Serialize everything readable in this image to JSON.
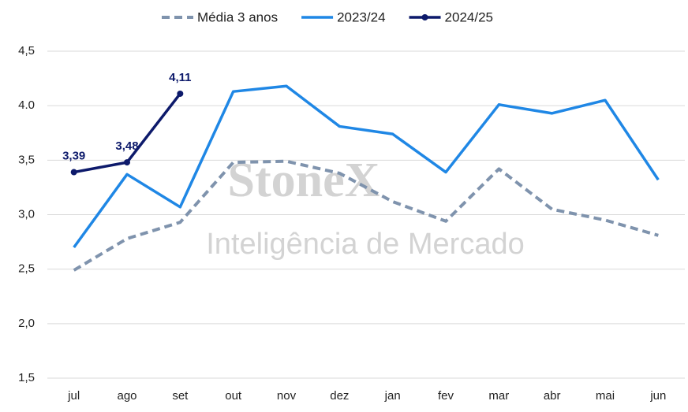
{
  "chart_data": {
    "type": "line",
    "categories": [
      "jul",
      "ago",
      "set",
      "out",
      "nov",
      "dez",
      "jan",
      "fev",
      "mar",
      "abr",
      "mai",
      "jun"
    ],
    "series": [
      {
        "name": "Média 3 anos",
        "color": "#7f93ad",
        "dashed": true,
        "values": [
          2.49,
          2.78,
          2.93,
          3.48,
          3.49,
          3.38,
          3.12,
          2.94,
          3.42,
          3.05,
          2.95,
          2.81
        ]
      },
      {
        "name": "2023/24",
        "color": "#1f87e5",
        "values": [
          2.7,
          3.37,
          3.07,
          4.13,
          4.18,
          3.81,
          3.74,
          3.39,
          4.01,
          3.93,
          4.05,
          3.32
        ]
      },
      {
        "name": "2024/25",
        "color": "#0d1a6b",
        "markers": true,
        "values": [
          3.39,
          3.48,
          4.11,
          null,
          null,
          null,
          null,
          null,
          null,
          null,
          null,
          null
        ],
        "value_labels": [
          "3,39",
          "3,48",
          "4,11",
          null,
          null,
          null,
          null,
          null,
          null,
          null,
          null,
          null
        ]
      }
    ],
    "ylim": [
      1.5,
      4.5
    ],
    "yticks": [
      {
        "value": 1.5,
        "label": "1,5"
      },
      {
        "value": 2,
        "label": "2,0"
      },
      {
        "value": 2.5,
        "label": "2,5"
      },
      {
        "value": 3,
        "label": "3,0"
      },
      {
        "value": 3.5,
        "label": "3,5"
      },
      {
        "value": 4,
        "label": "4.0"
      },
      {
        "value": 4.5,
        "label": "4,5"
      }
    ],
    "grid": true,
    "legend": "top",
    "watermark": {
      "brand": "StoneX",
      "subtitle": "Inteligência de Mercado"
    }
  }
}
